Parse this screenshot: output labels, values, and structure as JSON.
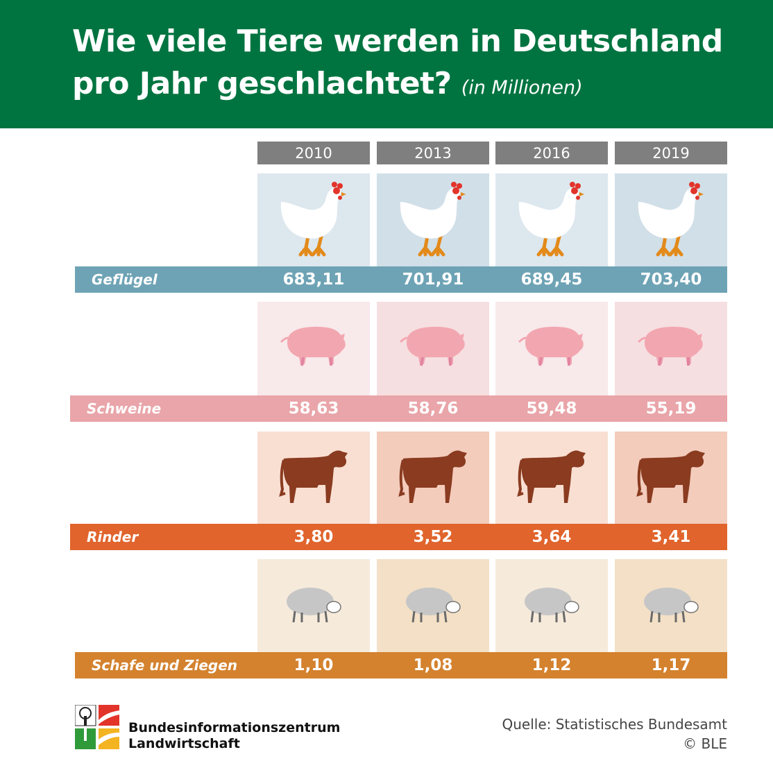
{
  "title": {
    "line1": "Wie viele Tiere werden in Deutschland",
    "line2": "pro Jahr geschlachtet?",
    "unit": "(in Millionen)"
  },
  "years": [
    "2010",
    "2013",
    "2016",
    "2019"
  ],
  "categories": [
    {
      "label": "Geflügel",
      "values": [
        "683,11",
        "701,91",
        "689,45",
        "703,40"
      ],
      "icon": "chicken-icon",
      "band_color": "#6ea3b5",
      "cell_colors": [
        "#dde7ee",
        "#d1dfe8",
        "#dde7ee",
        "#d1dfe8"
      ]
    },
    {
      "label": "Schweine",
      "values": [
        "58,63",
        "58,76",
        "59,48",
        "55,19"
      ],
      "icon": "pig-icon",
      "band_color": "#e9a5a9",
      "cell_colors": [
        "#f8e9eb",
        "#f6dfe1",
        "#f8e9eb",
        "#f6dfe1"
      ]
    },
    {
      "label": "Rinder",
      "values": [
        "3,80",
        "3,52",
        "3,64",
        "3,41"
      ],
      "icon": "cow-icon",
      "band_color": "#e0642c",
      "cell_colors": [
        "#f8dfd2",
        "#f3ccbc",
        "#f8dfd2",
        "#f3ccbc"
      ]
    },
    {
      "label": "Schafe und Ziegen",
      "values": [
        "1,10",
        "1,08",
        "1,12",
        "1,17"
      ],
      "icon": "sheep-icon",
      "band_color": "#d4822e",
      "cell_colors": [
        "#f6eadb",
        "#f3e0c6",
        "#f6eadb",
        "#f3e0c6"
      ]
    }
  ],
  "chart_data": {
    "type": "table",
    "title": "Wie viele Tiere werden in Deutschland pro Jahr geschlachtet?",
    "subtitle": "(in Millionen)",
    "columns": [
      "2010",
      "2013",
      "2016",
      "2019"
    ],
    "series": [
      {
        "name": "Geflügel",
        "values": [
          683.11,
          701.91,
          689.45,
          703.4
        ]
      },
      {
        "name": "Schweine",
        "values": [
          58.63,
          58.76,
          59.48,
          55.19
        ]
      },
      {
        "name": "Rinder",
        "values": [
          3.8,
          3.52,
          3.64,
          3.41
        ]
      },
      {
        "name": "Schafe und Ziegen",
        "values": [
          1.1,
          1.08,
          1.12,
          1.17
        ]
      }
    ]
  },
  "footer": {
    "org_line1": "Bundesinformationszentrum",
    "org_line2": "Landwirtschaft",
    "source": "Quelle: Statistisches Bundesamt",
    "copyright": "© BLE"
  }
}
